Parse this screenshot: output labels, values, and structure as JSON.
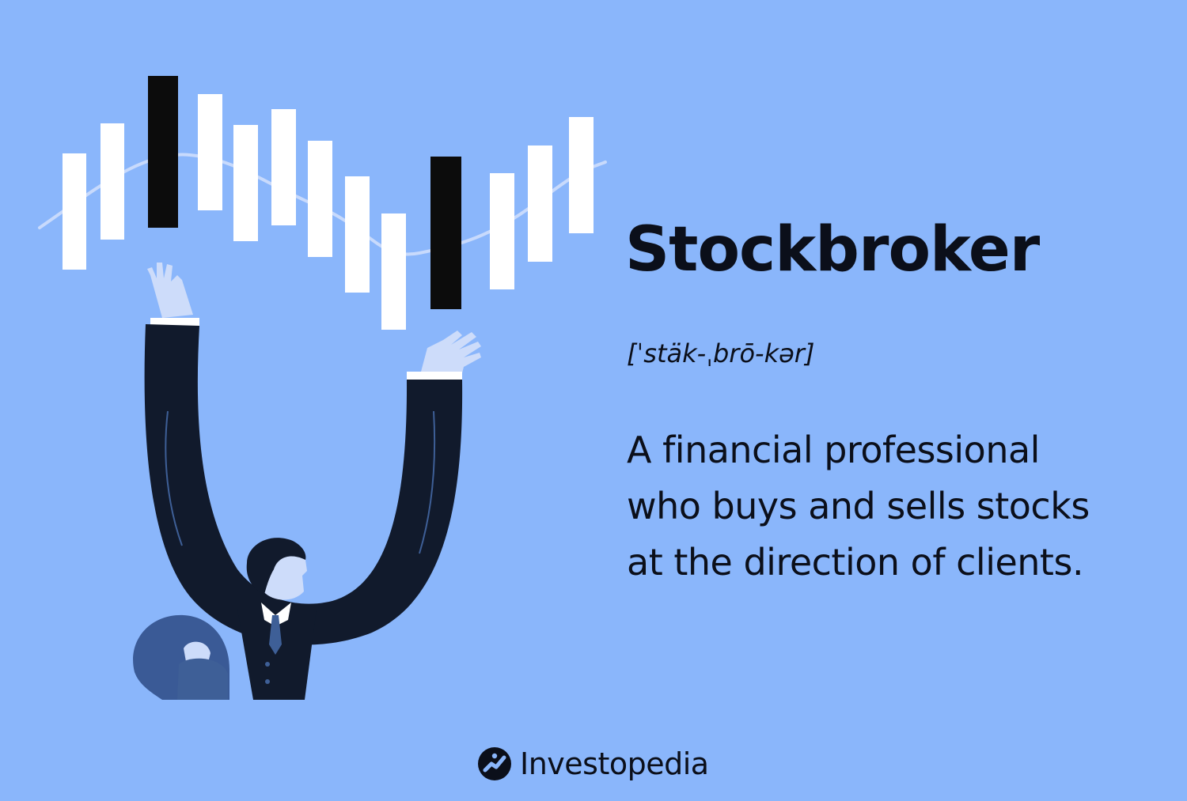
{
  "colors": {
    "background": "#8ab6fb",
    "text": "#0b0f1a",
    "candle_light": "#ffffff",
    "candle_dark": "#0c0c0c",
    "trend_line": "#c8dafc",
    "suit": "#111a2c",
    "suit_highlight": "#3e5f97",
    "skin": "#cddcfa",
    "hair_figure": "#3a5a96"
  },
  "illustration": {
    "subject": "stockbroker-juggling-candlesticks",
    "icon": "candlestick-chart-icon"
  },
  "term": "Stockbroker",
  "pronunciation": "[ˈstäk-ˌbrō-kər]",
  "definition_lines": [
    "A financial professional",
    "who buys and sells stocks",
    "at the direction of clients."
  ],
  "brand": {
    "name": "Investopedia",
    "icon": "investopedia-logo-icon"
  }
}
